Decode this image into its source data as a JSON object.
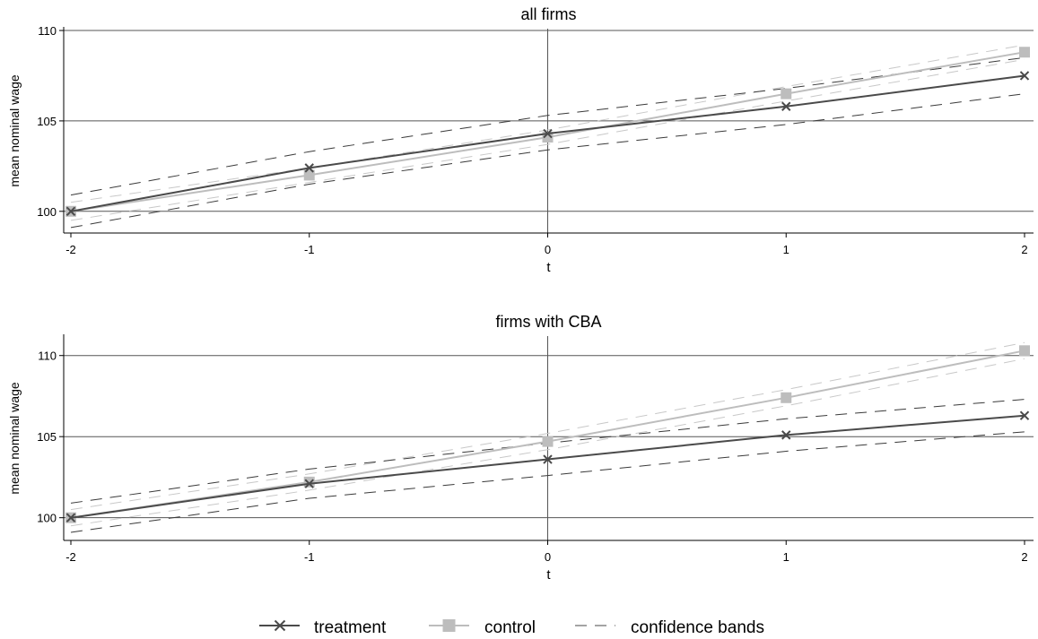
{
  "chart_data": [
    {
      "type": "line",
      "title": "all firms",
      "xlabel": "t",
      "ylabel": "mean nominal wage",
      "x": [
        -2,
        -1,
        0,
        1,
        2
      ],
      "xlim": [
        -2,
        2
      ],
      "ylim": [
        98.8,
        110.1
      ],
      "yticks": [
        100,
        105,
        110
      ],
      "xticks": [
        -2,
        -1,
        0,
        1,
        2
      ],
      "grid": "horizontal",
      "series": [
        {
          "name": "treatment",
          "values": [
            100.0,
            102.4,
            104.3,
            105.8,
            107.5
          ],
          "color": "#4a4a4a",
          "marker": "x"
        },
        {
          "name": "control",
          "values": [
            100.0,
            102.0,
            104.1,
            106.5,
            108.8
          ],
          "color": "#bdbdbd",
          "marker": "square"
        }
      ],
      "bands": {
        "treatment": {
          "upper": [
            100.9,
            103.3,
            105.3,
            106.8,
            108.5
          ],
          "lower": [
            99.1,
            101.5,
            103.4,
            104.8,
            106.5
          ]
        },
        "control": {
          "upper": [
            100.5,
            102.4,
            104.5,
            106.9,
            109.2
          ],
          "lower": [
            99.5,
            101.6,
            103.7,
            106.1,
            108.4
          ]
        }
      }
    },
    {
      "type": "line",
      "title": "firms with CBA",
      "xlabel": "t",
      "ylabel": "mean nominal wage",
      "x": [
        -2,
        -1,
        0,
        1,
        2
      ],
      "xlim": [
        -2,
        2
      ],
      "ylim": [
        98.6,
        111.2
      ],
      "yticks": [
        100,
        105,
        110
      ],
      "xticks": [
        -2,
        -1,
        0,
        1,
        2
      ],
      "grid": "horizontal",
      "series": [
        {
          "name": "treatment",
          "values": [
            100.0,
            102.1,
            103.6,
            105.1,
            106.3
          ],
          "color": "#4a4a4a",
          "marker": "x"
        },
        {
          "name": "control",
          "values": [
            100.0,
            102.2,
            104.7,
            107.4,
            110.3
          ],
          "color": "#bdbdbd",
          "marker": "square"
        }
      ],
      "bands": {
        "treatment": {
          "upper": [
            100.9,
            103.0,
            104.6,
            106.1,
            107.3
          ],
          "lower": [
            99.1,
            101.2,
            102.6,
            104.1,
            105.3
          ]
        },
        "control": {
          "upper": [
            100.5,
            102.7,
            105.2,
            107.9,
            110.8
          ],
          "lower": [
            99.5,
            101.7,
            104.2,
            106.9,
            109.8
          ]
        }
      }
    }
  ],
  "legend": {
    "items": [
      {
        "label": "treatment",
        "key": "treatment"
      },
      {
        "label": "control",
        "key": "control"
      },
      {
        "label": "confidence bands",
        "key": "bands"
      }
    ],
    "placement": "bottom"
  }
}
